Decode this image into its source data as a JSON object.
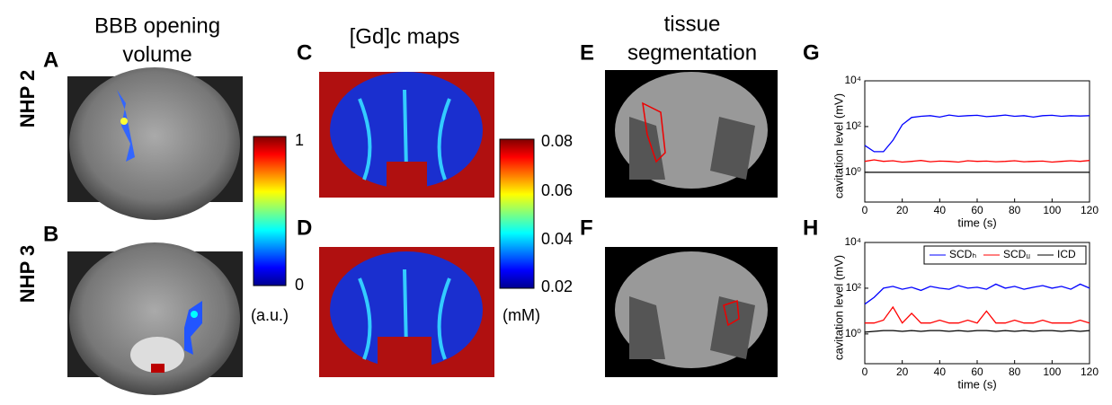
{
  "panels": {
    "col1_title": [
      "BBB opening",
      "volume"
    ],
    "col2_title": "[Gd]c maps",
    "col3_title": [
      "tissue",
      "segmentation"
    ],
    "letters": [
      "A",
      "B",
      "C",
      "D",
      "E",
      "F",
      "G",
      "H"
    ],
    "rows": [
      "NHP 2",
      "NHP 3"
    ],
    "colorbar1": {
      "ticks": [
        "1",
        "0"
      ],
      "unit": "(a.u.)"
    },
    "colorbar2": {
      "ticks": [
        "0.08",
        "0.06",
        "0.04",
        "0.02"
      ],
      "unit": "(mM)"
    }
  },
  "chart_data": [
    {
      "type": "line",
      "xlabel": "time (s)",
      "ylabel": "cavitation level (mV)",
      "log_y": true,
      "xlim": [
        0,
        120
      ],
      "xticks": [
        0,
        20,
        40,
        60,
        80,
        100,
        120
      ],
      "ylim": [
        0.05,
        10000
      ],
      "yticks": [
        {
          "value": 1,
          "label": "10⁰"
        },
        {
          "value": 100,
          "label": "10²"
        },
        {
          "value": 10000,
          "label": "10⁴"
        }
      ],
      "x": [
        0,
        5,
        10,
        15,
        20,
        25,
        30,
        35,
        40,
        45,
        50,
        55,
        60,
        65,
        70,
        75,
        80,
        85,
        90,
        95,
        100,
        105,
        110,
        115,
        120
      ],
      "series": [
        {
          "color": "#0000ff",
          "values": [
            15,
            8,
            8,
            25,
            120,
            250,
            280,
            300,
            260,
            320,
            280,
            300,
            310,
            270,
            290,
            320,
            280,
            300,
            260,
            300,
            310,
            280,
            300,
            290,
            300
          ]
        },
        {
          "color": "#ff0000",
          "values": [
            3,
            3.5,
            3,
            3.2,
            2.8,
            3,
            3.3,
            2.9,
            3.1,
            3,
            2.8,
            3.2,
            3,
            3.1,
            2.9,
            3,
            3.2,
            2.9,
            3,
            3.1,
            2.8,
            3,
            3.2,
            3,
            3.3
          ]
        },
        {
          "color": "#000000",
          "values": [
            1,
            1,
            1,
            1,
            1,
            1,
            1,
            1,
            1,
            1,
            1,
            1,
            1,
            1,
            1,
            1,
            1,
            1,
            1,
            1,
            1,
            1,
            1,
            1,
            1
          ]
        }
      ]
    },
    {
      "type": "line",
      "xlabel": "time (s)",
      "ylabel": "cavitation level (mV)",
      "log_y": true,
      "legend": "upper right",
      "xlim": [
        0,
        120
      ],
      "xticks": [
        0,
        20,
        40,
        60,
        80,
        100,
        120
      ],
      "ylim": [
        0.05,
        10000
      ],
      "yticks": [
        {
          "value": 1,
          "label": "10⁰"
        },
        {
          "value": 100,
          "label": "10²"
        },
        {
          "value": 10000,
          "label": "10⁴"
        }
      ],
      "x": [
        0,
        5,
        10,
        15,
        20,
        25,
        30,
        35,
        40,
        45,
        50,
        55,
        60,
        65,
        70,
        75,
        80,
        85,
        90,
        95,
        100,
        105,
        110,
        115,
        120
      ],
      "series": [
        {
          "name": "SCDₕ",
          "color": "#0000ff",
          "values": [
            20,
            40,
            100,
            120,
            90,
            110,
            80,
            120,
            100,
            90,
            130,
            100,
            110,
            90,
            150,
            100,
            120,
            90,
            110,
            130,
            100,
            120,
            90,
            150,
            100
          ]
        },
        {
          "name": "SCDᵤ",
          "color": "#ff0000",
          "values": [
            3,
            3,
            4,
            15,
            3,
            8,
            3,
            3,
            4,
            3,
            3,
            4,
            3,
            10,
            3,
            3,
            4,
            3,
            3,
            4,
            3,
            3,
            3,
            4,
            3
          ]
        },
        {
          "name": "ICD",
          "color": "#000000",
          "values": [
            1.2,
            1.3,
            1.4,
            1.4,
            1.3,
            1.4,
            1.3,
            1.4,
            1.4,
            1.3,
            1.4,
            1.3,
            1.4,
            1.4,
            1.3,
            1.4,
            1.3,
            1.4,
            1.3,
            1.4,
            1.4,
            1.3,
            1.4,
            1.3,
            1.4
          ]
        }
      ]
    }
  ]
}
